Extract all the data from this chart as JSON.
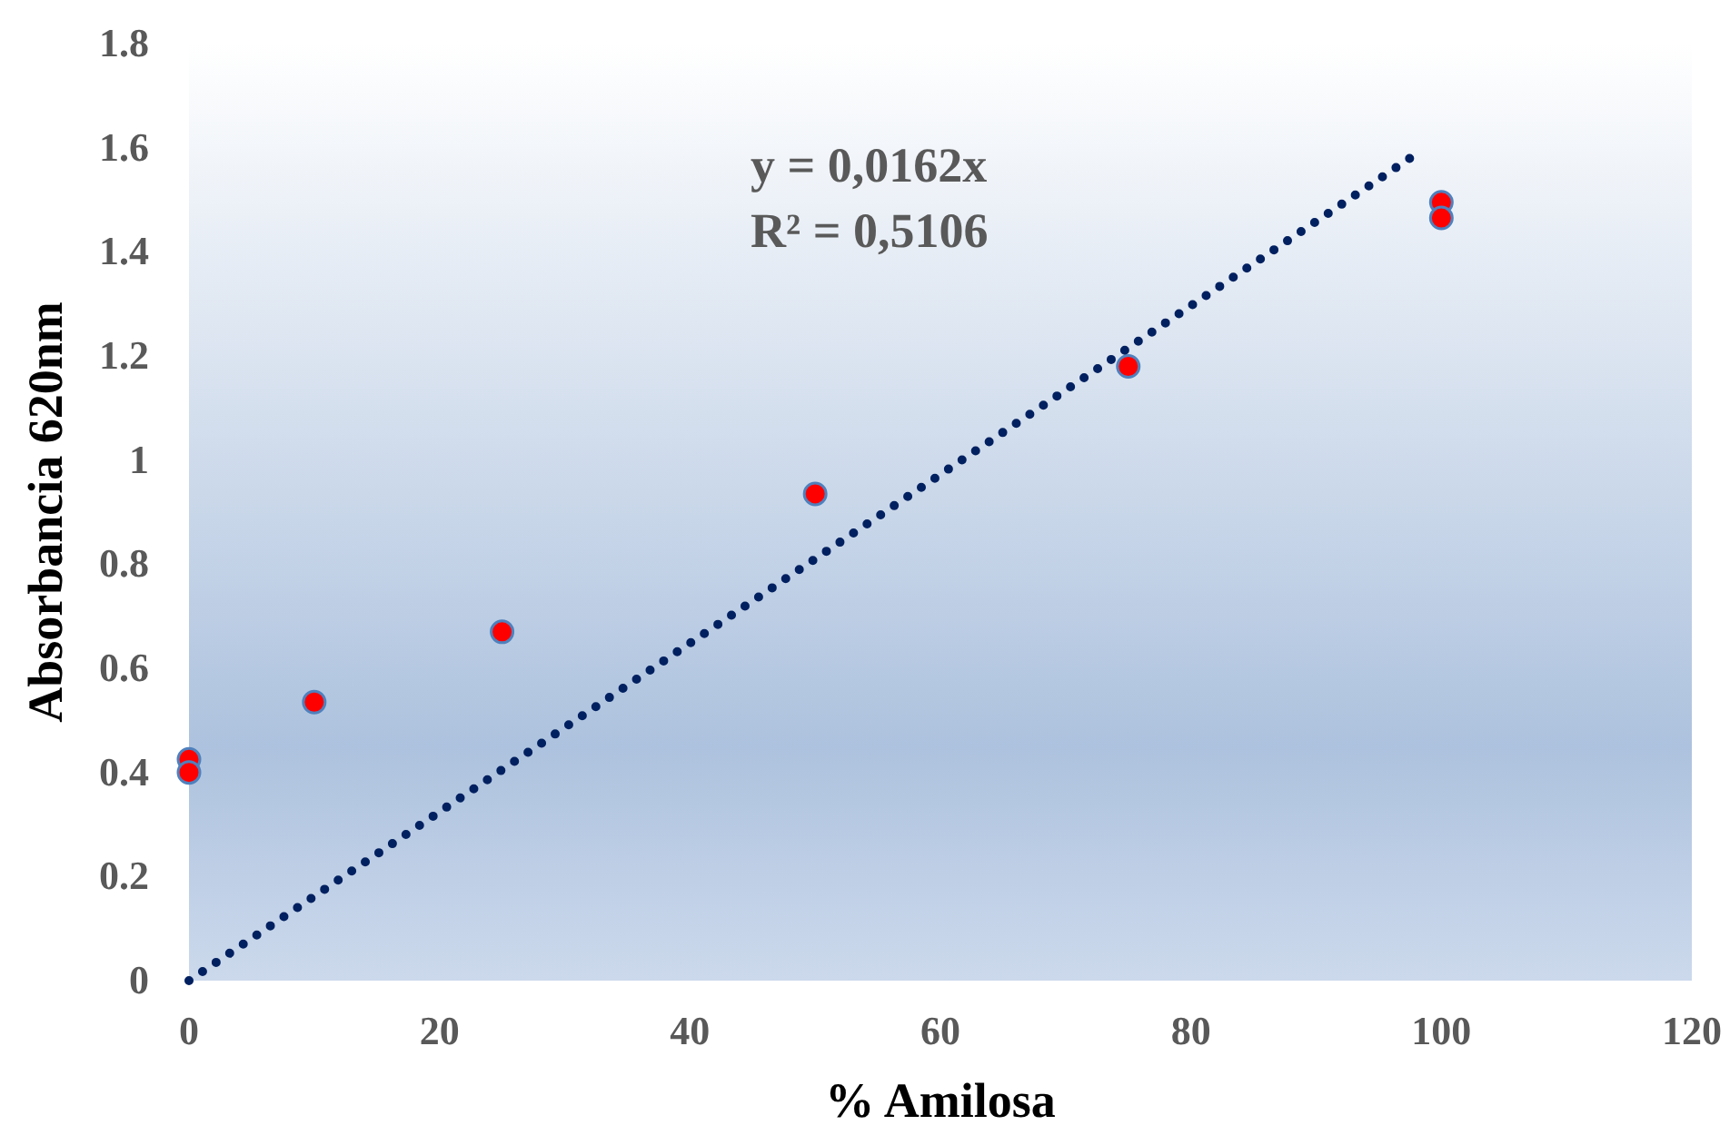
{
  "chart_data": {
    "type": "scatter",
    "xlabel": "% Amilosa",
    "ylabel": "Absorbancia 620nm",
    "xlim": [
      0,
      120
    ],
    "ylim": [
      0,
      1.8
    ],
    "xticks": [
      0,
      20,
      40,
      60,
      80,
      100,
      120
    ],
    "yticks": [
      0,
      0.2,
      0.4,
      0.6,
      0.8,
      1,
      1.2,
      1.4,
      1.6,
      1.8
    ],
    "annotations": [
      "y = 0,0162x",
      "R² = 0,5106"
    ],
    "series": [
      {
        "type": "scatter",
        "color": "#ff0000",
        "marker": "circle",
        "x": [
          0,
          0,
          10,
          25,
          50,
          75,
          100,
          100
        ],
        "values": [
          0.425,
          0.4,
          0.535,
          0.67,
          0.935,
          1.18,
          1.495,
          1.465
        ]
      },
      {
        "type": "line",
        "color": "#002060",
        "marker": "none",
        "line_style": "dotted",
        "x": [
          0,
          98
        ],
        "values": [
          0,
          1.588
        ]
      }
    ]
  }
}
